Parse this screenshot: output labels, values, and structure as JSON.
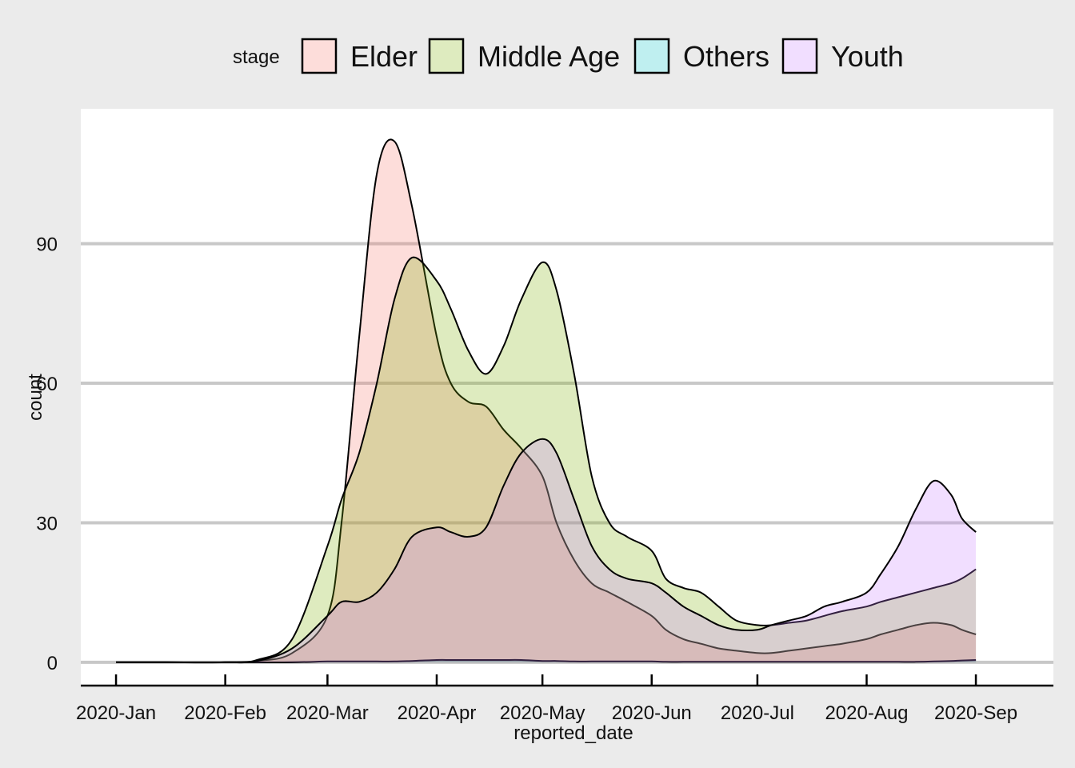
{
  "chart_data": {
    "type": "area",
    "subtype": "density",
    "xlabel": "reported_date",
    "ylabel": "count",
    "x_ticks": [
      "2020-Jan",
      "2020-Feb",
      "2020-Mar",
      "2020-Apr",
      "2020-May",
      "2020-Jun",
      "2020-Jul",
      "2020-Aug",
      "2020-Sep"
    ],
    "y_ticks": [
      0,
      30,
      60,
      90
    ],
    "ylim": [
      -5,
      119
    ],
    "xlim": [
      "2019-12-22",
      "2020-09-23"
    ],
    "grid": "horizontal major",
    "legend": {
      "title": "stage",
      "position": "top",
      "entries": [
        "Elder",
        "Middle Age",
        "Others",
        "Youth"
      ]
    },
    "colors": {
      "Elder": "#F8766D",
      "Middle Age": "#7CAE00",
      "Others": "#00BFC4",
      "Youth": "#C77CFF",
      "panel_background": "#ffffff",
      "plot_background": "#ebebeb",
      "grid": "#c8c8c8",
      "outline": "#000000"
    },
    "fill_alpha": 0.25,
    "x_dates": [
      "2020-01-01",
      "2020-01-15",
      "2020-02-01",
      "2020-02-10",
      "2020-02-20",
      "2020-03-01",
      "2020-03-05",
      "2020-03-10",
      "2020-03-15",
      "2020-03-20",
      "2020-03-25",
      "2020-04-01",
      "2020-04-05",
      "2020-04-10",
      "2020-04-15",
      "2020-04-20",
      "2020-04-25",
      "2020-05-01",
      "2020-05-05",
      "2020-05-10",
      "2020-05-15",
      "2020-05-20",
      "2020-05-25",
      "2020-06-01",
      "2020-06-05",
      "2020-06-10",
      "2020-06-15",
      "2020-06-20",
      "2020-06-25",
      "2020-07-01",
      "2020-07-05",
      "2020-07-10",
      "2020-07-15",
      "2020-07-20",
      "2020-07-25",
      "2020-08-01",
      "2020-08-05",
      "2020-08-10",
      "2020-08-15",
      "2020-08-20",
      "2020-08-25",
      "2020-08-28",
      "2020-09-01"
    ],
    "series": [
      {
        "name": "Elder",
        "values": [
          0,
          0,
          0,
          0.3,
          2,
          10,
          30,
          70,
          105,
          112,
          98,
          70,
          60,
          56,
          55,
          50,
          46,
          40,
          30,
          22,
          17,
          15,
          13,
          10,
          7,
          5,
          4,
          3,
          2.5,
          2,
          2,
          2.5,
          3,
          3.5,
          4,
          5,
          6,
          7,
          8,
          8.5,
          8,
          7,
          6
        ]
      },
      {
        "name": "Middle Age",
        "values": [
          0,
          0,
          0,
          0.5,
          5,
          25,
          35,
          45,
          60,
          78,
          87,
          82,
          76,
          67,
          62,
          68,
          78,
          86,
          80,
          62,
          40,
          30,
          27,
          24,
          18,
          16,
          15,
          12,
          9,
          8,
          8,
          8.5,
          9,
          10,
          11,
          12,
          13,
          14,
          15,
          16,
          17,
          18,
          20
        ]
      },
      {
        "name": "Others",
        "values": [
          0,
          0,
          0,
          0,
          0,
          0.2,
          0.2,
          0.2,
          0.2,
          0.2,
          0.3,
          0.5,
          0.5,
          0.5,
          0.5,
          0.5,
          0.5,
          0.3,
          0.3,
          0.2,
          0.2,
          0.2,
          0.2,
          0.2,
          0.1,
          0.1,
          0.1,
          0.1,
          0.1,
          0.1,
          0.1,
          0.1,
          0.1,
          0.1,
          0.1,
          0.1,
          0.1,
          0.1,
          0.1,
          0.2,
          0.3,
          0.4,
          0.5
        ]
      },
      {
        "name": "Youth",
        "values": [
          0,
          0,
          0,
          0.3,
          3,
          10,
          13,
          13,
          15,
          20,
          27,
          29,
          28,
          27,
          29,
          38,
          45,
          48,
          45,
          35,
          25,
          20,
          18,
          17,
          15,
          12,
          10,
          8,
          7,
          7,
          8,
          9,
          10,
          12,
          13,
          15,
          19,
          25,
          33,
          39,
          36,
          31,
          28
        ]
      }
    ]
  }
}
